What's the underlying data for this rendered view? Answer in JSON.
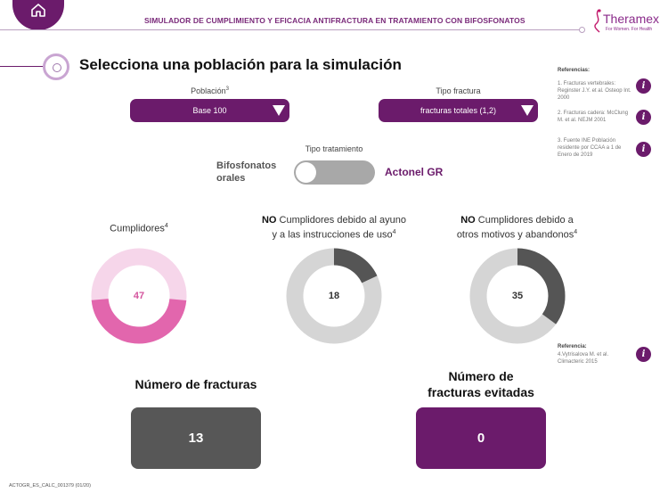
{
  "header": {
    "title": "SIMULADOR DE CUMPLIMIENTO Y EFICACIA ANTIFRACTURA EN TRATAMIENTO CON BIFOSFONATOS",
    "home_icon": "home-icon",
    "logo": {
      "name": "Theramex",
      "tagline": "For Women. For Health"
    }
  },
  "page_title": "Selecciona una población para la simulación",
  "references": {
    "heading": "Referencias:",
    "items": [
      {
        "text": "1. Fracturas vertebrales: Reginster J.Y. et al. Osteop Int. 2000",
        "icon": "info-icon",
        "glyph": "i"
      },
      {
        "text": "2. Fracturas cadera: McClung M. et al. NEJM 2001",
        "icon": "info-icon",
        "glyph": "i"
      },
      {
        "text": "3. Fuente INE Población residente por CCAA a 1 de Enero de 2019",
        "icon": "info-icon",
        "glyph": "i"
      }
    ],
    "second_heading": "Referencia:",
    "second_item": {
      "text": "4.Vytrisalova M. et al. Climacteric 2015",
      "icon": "info-icon",
      "glyph": "i"
    }
  },
  "poblacion": {
    "label": "Población",
    "sup": "3",
    "value": "Base 100"
  },
  "tipo_fractura": {
    "label": "Tipo fractura",
    "value": "fracturas totales (1,2)"
  },
  "tipo_tratamiento": {
    "label": "Tipo tratamiento",
    "left_option_line1": "Bifosfonatos",
    "left_option_line2": "orales",
    "right_option": "Actonel GR",
    "selected": "Bifosfonatos orales"
  },
  "donuts": [
    {
      "label_pre": "",
      "label_bold": "",
      "label_line1": "Cumplidores",
      "label_line2": "",
      "sup": "4",
      "value": "47",
      "fraction": 0.47,
      "fill_color": "#e266ad",
      "track_color": "#f6d6ea",
      "value_color": "#d4559e",
      "start": "bottom"
    },
    {
      "label_pre": "",
      "label_bold": "NO",
      "label_line1": " Cumplidores debido al ayuno",
      "label_line2": "y a las instrucciones de uso",
      "sup": "4",
      "value": "18",
      "fraction": 0.18,
      "fill_color": "#555555",
      "track_color": "#d5d5d5",
      "value_color": "#333333",
      "start": "top"
    },
    {
      "label_pre": "",
      "label_bold": "NO",
      "label_line1": " Cumplidores debido a",
      "label_line2": "otros motivos y abandonos",
      "sup": "4",
      "value": "35",
      "fraction": 0.35,
      "fill_color": "#555555",
      "track_color": "#d5d5d5",
      "value_color": "#333333",
      "start": "top"
    }
  ],
  "results": {
    "fracturas": {
      "label": "Número de fracturas",
      "value": "13",
      "color": "#575757"
    },
    "evitadas": {
      "label_line1": "Número de",
      "label_line2": "fracturas evitadas",
      "value": "0",
      "color": "#6b1b6b"
    }
  },
  "footer_code": "ACTOGR_ES_CALC_001379 (01/20)"
}
